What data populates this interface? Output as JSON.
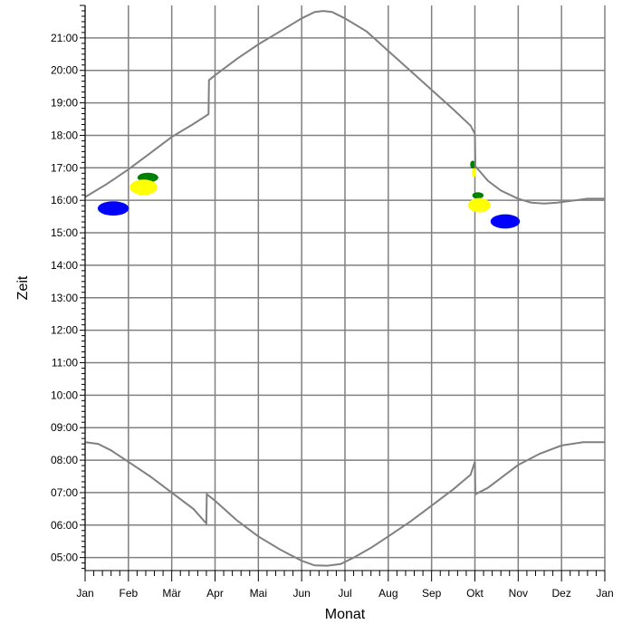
{
  "chart_data": {
    "type": "line",
    "title": "",
    "xlabel": "Monat",
    "ylabel": "Zeit",
    "x_tick_labels": [
      "Jan",
      "Feb",
      "Mär",
      "Apr",
      "Mai",
      "Jun",
      "Jul",
      "Aug",
      "Sep",
      "Okt",
      "Nov",
      "Dez",
      "Jan"
    ],
    "y_tick_labels": [
      "05:00",
      "06:00",
      "07:00",
      "08:00",
      "09:00",
      "10:00",
      "11:00",
      "12:00",
      "13:00",
      "14:00",
      "15:00",
      "16:00",
      "17:00",
      "18:00",
      "19:00",
      "20:00",
      "21:00"
    ],
    "xlim": [
      0,
      12
    ],
    "ylim_hours": [
      4.6,
      22.0
    ],
    "grid": true,
    "series": [
      {
        "role": "sunset",
        "color": "#808080",
        "points": [
          [
            0,
            16.1
          ],
          [
            0.5,
            16.5
          ],
          [
            1,
            16.95
          ],
          [
            1.5,
            17.45
          ],
          [
            2,
            17.95
          ],
          [
            2.5,
            18.35
          ],
          [
            2.85,
            18.65
          ],
          [
            2.86,
            19.7
          ],
          [
            3,
            19.85
          ],
          [
            3.5,
            20.35
          ],
          [
            4,
            20.8
          ],
          [
            4.5,
            21.2
          ],
          [
            5,
            21.6
          ],
          [
            5.3,
            21.8
          ],
          [
            5.5,
            21.83
          ],
          [
            5.7,
            21.8
          ],
          [
            6,
            21.6
          ],
          [
            6.5,
            21.2
          ],
          [
            7,
            20.6
          ],
          [
            7.5,
            20.0
          ],
          [
            8,
            19.4
          ],
          [
            8.5,
            18.8
          ],
          [
            8.9,
            18.3
          ],
          [
            9.0,
            18.05
          ],
          [
            9.01,
            17.05
          ],
          [
            9.3,
            16.6
          ],
          [
            9.6,
            16.3
          ],
          [
            10,
            16.05
          ],
          [
            10.3,
            15.93
          ],
          [
            10.6,
            15.9
          ],
          [
            10.9,
            15.93
          ],
          [
            11.2,
            15.98
          ],
          [
            11.6,
            16.05
          ],
          [
            12,
            16.05
          ]
        ]
      },
      {
        "role": "sunrise",
        "color": "#808080",
        "points": [
          [
            0,
            8.55
          ],
          [
            0.3,
            8.5
          ],
          [
            0.6,
            8.3
          ],
          [
            1,
            7.95
          ],
          [
            1.5,
            7.5
          ],
          [
            2,
            7.0
          ],
          [
            2.5,
            6.5
          ],
          [
            2.8,
            6.05
          ],
          [
            2.81,
            6.95
          ],
          [
            3,
            6.75
          ],
          [
            3.5,
            6.15
          ],
          [
            4,
            5.65
          ],
          [
            4.5,
            5.25
          ],
          [
            5,
            4.9
          ],
          [
            5.3,
            4.76
          ],
          [
            5.6,
            4.75
          ],
          [
            5.9,
            4.8
          ],
          [
            6.2,
            5.0
          ],
          [
            6.6,
            5.3
          ],
          [
            7,
            5.65
          ],
          [
            7.5,
            6.1
          ],
          [
            8,
            6.6
          ],
          [
            8.5,
            7.1
          ],
          [
            8.9,
            7.55
          ],
          [
            9.0,
            7.95
          ],
          [
            9.01,
            6.95
          ],
          [
            9.3,
            7.15
          ],
          [
            9.6,
            7.45
          ],
          [
            10,
            7.85
          ],
          [
            10.5,
            8.2
          ],
          [
            11,
            8.45
          ],
          [
            11.5,
            8.55
          ],
          [
            12,
            8.55
          ]
        ]
      }
    ],
    "blobs": [
      {
        "color": "#0000ff",
        "cx": 0.65,
        "cy": 15.75,
        "rx": 0.36,
        "ry": 0.22
      },
      {
        "color": "#008000",
        "cx": 1.45,
        "cy": 16.7,
        "rx": 0.24,
        "ry": 0.15
      },
      {
        "color": "#ffff00",
        "cx": 1.35,
        "cy": 16.4,
        "rx": 0.32,
        "ry": 0.24
      },
      {
        "color": "#008000",
        "cx": 8.95,
        "cy": 17.1,
        "rx": 0.06,
        "ry": 0.12
      },
      {
        "color": "#ffff00",
        "cx": 8.98,
        "cy": 16.85,
        "rx": 0.05,
        "ry": 0.14
      },
      {
        "color": "#008000",
        "cx": 9.07,
        "cy": 16.15,
        "rx": 0.13,
        "ry": 0.1
      },
      {
        "color": "#ffff00",
        "cx": 9.1,
        "cy": 15.85,
        "rx": 0.26,
        "ry": 0.22
      },
      {
        "color": "#0000ff",
        "cx": 9.7,
        "cy": 15.35,
        "rx": 0.34,
        "ry": 0.22
      }
    ]
  }
}
